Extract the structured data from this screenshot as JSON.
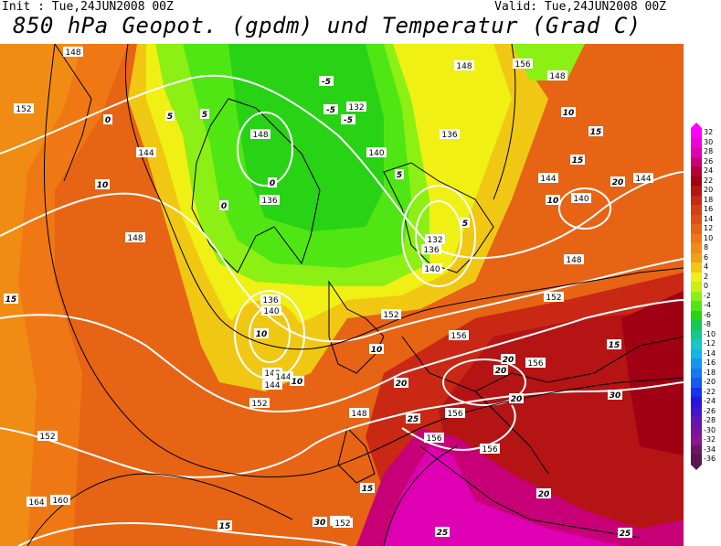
{
  "header": {
    "init": "Init : Tue,24JUN2008 00Z",
    "valid": "Valid: Tue,24JUN2008 00Z",
    "title": "850 hPa Geopot. (gpdm) und Temperatur (Grad C)"
  },
  "colorbar": {
    "levels": [
      "32",
      "30",
      "28",
      "26",
      "24",
      "22",
      "20",
      "18",
      "16",
      "14",
      "12",
      "10",
      "8",
      "6",
      "4",
      "2",
      "0",
      "-2",
      "-4",
      "-6",
      "-8",
      "-10",
      "-12",
      "-14",
      "-16",
      "-18",
      "-20",
      "-22",
      "-24",
      "-26",
      "-28",
      "-30",
      "-32",
      "-34",
      "-36"
    ],
    "colors": [
      "#ff00ff",
      "#f000d8",
      "#e000b4",
      "#c80078",
      "#b4003c",
      "#a00014",
      "#b41414",
      "#c82814",
      "#d24014",
      "#dc5014",
      "#e66414",
      "#f07814",
      "#f08c14",
      "#f0a014",
      "#f0c814",
      "#f0f014",
      "#c8f014",
      "#8cf014",
      "#50e614",
      "#28d214",
      "#14c850",
      "#14c88c",
      "#14c8c8",
      "#14b4e6",
      "#1496f0",
      "#1478f0",
      "#145af0",
      "#1432f0",
      "#2814dc",
      "#4614c8",
      "#6414b4",
      "#7814a0",
      "#8c148c",
      "#6e1464",
      "#5a1450"
    ]
  },
  "map": {
    "geopotential_labels": [
      "148",
      "152",
      "144",
      "148",
      "132",
      "136",
      "140",
      "136",
      "148",
      "148",
      "144",
      "140",
      "144",
      "148",
      "152",
      "148",
      "136",
      "140",
      "132",
      "136",
      "140",
      "148",
      "144",
      "152",
      "152",
      "156",
      "156",
      "148",
      "156",
      "156",
      "152",
      "156",
      "156",
      "152",
      "164",
      "160",
      "152",
      "144"
    ],
    "temperature_labels": [
      "15",
      "10",
      "5",
      "0",
      "-5",
      "-5",
      "-5",
      "0",
      "0",
      "5",
      "10",
      "15",
      "20",
      "20",
      "25",
      "25",
      "20",
      "30",
      "20",
      "30",
      "20",
      "15",
      "10",
      "20",
      "25",
      "15",
      "10",
      "5",
      "15",
      "10",
      "5",
      "15",
      "10"
    ]
  }
}
